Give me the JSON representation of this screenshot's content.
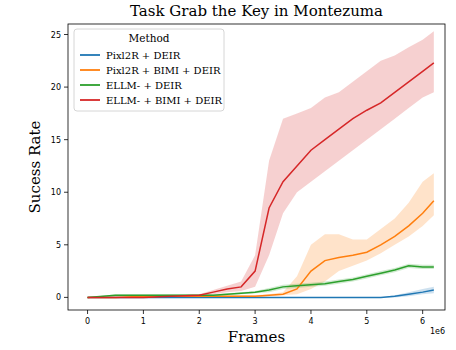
{
  "chart_data": {
    "type": "line",
    "title": "Task Grab the Key in Montezuma",
    "x_label": "Frames",
    "y_label": "Sucess Rate",
    "annotations": [
      "1e6"
    ],
    "legend_title": "Method",
    "legend": "upper left",
    "xlim": [
      -0.35,
      6.4
    ],
    "ylim": [
      -1.2,
      26
    ],
    "xticks": [
      0,
      1,
      2,
      3,
      4,
      5,
      6
    ],
    "yticks": [
      0,
      5,
      10,
      15,
      20,
      25
    ],
    "x": [
      0,
      0.5,
      1,
      1.5,
      2,
      2.25,
      2.5,
      2.75,
      3,
      3.25,
      3.5,
      3.75,
      4,
      4.25,
      4.5,
      4.75,
      5,
      5.25,
      5.5,
      5.75,
      6,
      6.2
    ],
    "series": [
      {
        "name": "Pixl2R + DEIR",
        "color": "#1f77b4",
        "values": [
          0,
          0,
          0,
          0,
          0,
          0,
          0,
          0,
          0,
          0,
          0,
          0,
          0,
          0,
          0,
          0,
          0,
          0,
          0.1,
          0.3,
          0.5,
          0.7
        ],
        "lower": [
          0,
          0,
          0,
          0,
          0,
          0,
          0,
          0,
          0,
          0,
          0,
          0,
          0,
          0,
          0,
          0,
          0,
          0,
          0,
          0.1,
          0.3,
          0.4
        ],
        "upper": [
          0,
          0,
          0,
          0,
          0,
          0,
          0,
          0,
          0,
          0,
          0,
          0,
          0,
          0,
          0,
          0,
          0,
          0,
          0.2,
          0.5,
          0.8,
          1.0
        ]
      },
      {
        "name": "Pixl2R + BIMI + DEIR",
        "color": "#ff7f0e",
        "values": [
          0,
          0,
          0.1,
          0.1,
          0.1,
          0.1,
          0.1,
          0.1,
          0.1,
          0.2,
          0.3,
          0.8,
          2.5,
          3.5,
          3.8,
          4.0,
          4.3,
          5.0,
          5.8,
          6.8,
          8.0,
          9.2
        ],
        "lower": [
          0,
          0,
          0,
          0,
          0,
          0,
          0,
          0,
          0,
          0.1,
          0.2,
          0.3,
          0.8,
          1.5,
          2.5,
          3.0,
          3.5,
          4.2,
          5.0,
          5.8,
          6.8,
          7.8
        ],
        "upper": [
          0,
          0,
          0.2,
          0.2,
          0.2,
          0.2,
          0.2,
          0.2,
          0.2,
          0.3,
          0.5,
          2.0,
          5.0,
          6.0,
          6.0,
          5.5,
          5.5,
          6.5,
          7.5,
          9.0,
          11.0,
          11.8
        ]
      },
      {
        "name": "ELLM- + DEIR",
        "color": "#2ca02c",
        "values": [
          0,
          0.2,
          0.2,
          0.2,
          0.2,
          0.2,
          0.3,
          0.4,
          0.5,
          0.7,
          1.0,
          1.1,
          1.2,
          1.3,
          1.5,
          1.7,
          2.0,
          2.3,
          2.6,
          3.0,
          2.9,
          2.9
        ],
        "lower": [
          0,
          0.1,
          0.1,
          0.1,
          0.1,
          0.1,
          0.2,
          0.3,
          0.4,
          0.5,
          0.8,
          0.9,
          1.0,
          1.1,
          1.3,
          1.5,
          1.8,
          2.1,
          2.4,
          2.8,
          2.7,
          2.7
        ],
        "upper": [
          0,
          0.3,
          0.3,
          0.3,
          0.3,
          0.3,
          0.4,
          0.5,
          0.6,
          0.9,
          1.2,
          1.3,
          1.4,
          1.5,
          1.7,
          1.9,
          2.2,
          2.5,
          2.8,
          3.2,
          3.1,
          3.1
        ]
      },
      {
        "name": "ELLM- + BIMI + DEIR",
        "color": "#d62728",
        "values": [
          0,
          0,
          0,
          0.1,
          0.2,
          0.5,
          0.8,
          1.0,
          2.5,
          8.5,
          11.0,
          12.5,
          14.0,
          15.0,
          16.0,
          17.0,
          17.8,
          18.5,
          19.5,
          20.5,
          21.5,
          22.3
        ],
        "lower": [
          0,
          0,
          0,
          0,
          0.1,
          0.3,
          0.5,
          0.6,
          1.0,
          4.0,
          8.0,
          10.0,
          11.0,
          12.0,
          13.0,
          14.0,
          15.0,
          16.0,
          17.0,
          18.0,
          19.0,
          19.5
        ],
        "upper": [
          0,
          0,
          0,
          0.2,
          0.3,
          0.7,
          1.1,
          1.5,
          4.0,
          13.0,
          17.0,
          17.5,
          18.0,
          19.0,
          19.5,
          20.5,
          21.5,
          22.5,
          23.0,
          23.8,
          24.5,
          25.3
        ]
      }
    ]
  }
}
